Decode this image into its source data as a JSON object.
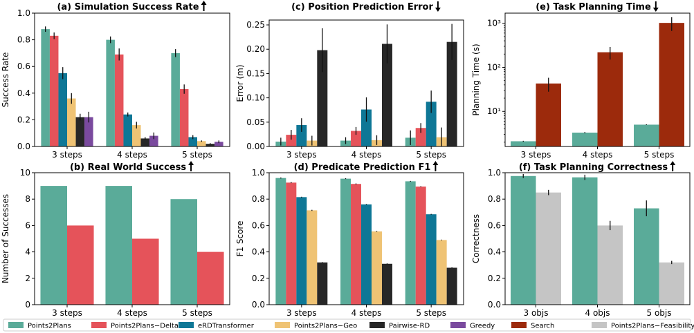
{
  "colors": {
    "Points2Plans": "#5aab99",
    "Points2Plans-Delta": "#e5535a",
    "eRDTransformer": "#0e7796",
    "Points2Plans-Geo": "#efc374",
    "Pairwise-RD": "#272727",
    "Greedy": "#7a4a9e",
    "Search": "#9c2a0c",
    "Points2Plans-Feasibility": "#c5c5c5"
  },
  "legend": {
    "entries": [
      {
        "key": "Points2Plans",
        "label": "Points2Plans"
      },
      {
        "key": "Points2Plans-Delta",
        "label": "Points2Plans−Delta"
      },
      {
        "key": "eRDTransformer",
        "label": "eRDTransformer"
      },
      {
        "key": "Points2Plans-Geo",
        "label": "Points2Plans−Geo"
      },
      {
        "key": "Pairwise-RD",
        "label": "Pairwise-RD"
      },
      {
        "key": "Greedy",
        "label": "Greedy"
      },
      {
        "key": "Search",
        "label": "Search"
      },
      {
        "key": "Points2Plans-Feasibility",
        "label": "Points2Plans−Feasibility"
      }
    ]
  },
  "chart_data": [
    {
      "id": "a",
      "type": "bar",
      "title": "(a) Simulation Success Rate",
      "arrow": "up",
      "xlabel": "",
      "ylabel": "Success Rate",
      "categories": [
        "3 steps",
        "4 steps",
        "5 steps"
      ],
      "ylim": [
        0,
        1.0
      ],
      "yticks": [
        0,
        0.2,
        0.4,
        0.6,
        0.8,
        1.0
      ],
      "ytick_labels": [
        "0.0",
        "0.2",
        "0.4",
        "0.6",
        "0.8",
        "1.0"
      ],
      "series": [
        {
          "key": "Points2Plans",
          "values": [
            0.88,
            0.8,
            0.7
          ],
          "err": [
            0.02,
            0.025,
            0.03
          ]
        },
        {
          "key": "Points2Plans-Delta",
          "values": [
            0.83,
            0.69,
            0.43
          ],
          "err": [
            0.025,
            0.045,
            0.035
          ]
        },
        {
          "key": "eRDTransformer",
          "values": [
            0.55,
            0.24,
            0.07
          ],
          "err": [
            0.045,
            0.015,
            0.015
          ]
        },
        {
          "key": "Points2Plans-Geo",
          "values": [
            0.36,
            0.16,
            0.04
          ],
          "err": [
            0.04,
            0.025,
            0.005
          ]
        },
        {
          "key": "Pairwise-RD",
          "values": [
            0.22,
            0.06,
            0.02
          ],
          "err": [
            0.025,
            0.01,
            0.005
          ]
        },
        {
          "key": "Greedy",
          "values": [
            0.22,
            0.08,
            0.035
          ],
          "err": [
            0.04,
            0.025,
            0.01
          ]
        }
      ]
    },
    {
      "id": "c",
      "type": "bar",
      "title": "(c) Position Prediction Error",
      "arrow": "down",
      "xlabel": "",
      "ylabel": "Error (m)",
      "categories": [
        "3 steps",
        "4 steps",
        "5 steps"
      ],
      "ylim": [
        0,
        0.26
      ],
      "yticks": [
        0,
        0.05,
        0.1,
        0.15,
        0.2,
        0.25
      ],
      "ytick_labels": [
        "0.00",
        "0.05",
        "0.10",
        "0.15",
        "0.20",
        "0.25"
      ],
      "series": [
        {
          "key": "Points2Plans",
          "values": [
            0.01,
            0.012,
            0.018
          ],
          "err": [
            0.008,
            0.007,
            0.015
          ]
        },
        {
          "key": "Points2Plans-Delta",
          "values": [
            0.024,
            0.032,
            0.038
          ],
          "err": [
            0.01,
            0.008,
            0.01
          ]
        },
        {
          "key": "eRDTransformer",
          "values": [
            0.044,
            0.076,
            0.092
          ],
          "err": [
            0.014,
            0.025,
            0.023
          ]
        },
        {
          "key": "Points2Plans-Geo",
          "values": [
            0.012,
            0.013,
            0.019
          ],
          "err": [
            0.01,
            0.01,
            0.02
          ]
        },
        {
          "key": "Pairwise-RD",
          "values": [
            0.198,
            0.211,
            0.215
          ],
          "err": [
            0.045,
            0.04,
            0.037
          ]
        }
      ]
    },
    {
      "id": "e",
      "type": "bar",
      "title": "(e) Task Planning Time",
      "arrow": "down",
      "xlabel": "",
      "ylabel": "Planning Time (s)",
      "yscale": "log",
      "categories": [
        "3 steps",
        "4 steps",
        "5 steps"
      ],
      "ylim": [
        1.6,
        1700
      ],
      "yticks": [
        10,
        100,
        1000
      ],
      "ytick_labels": [
        "10¹",
        "10²",
        "10³"
      ],
      "series": [
        {
          "key": "Points2Plans",
          "values": [
            2.1,
            3.3,
            5.0
          ],
          "err": [
            0.05,
            0.1,
            0.1
          ]
        },
        {
          "key": "Search",
          "values": [
            43,
            220,
            1020
          ],
          "err": [
            15,
            70,
            350
          ]
        }
      ]
    },
    {
      "id": "b",
      "type": "bar",
      "title": "(b) Real World Success",
      "arrow": "up",
      "xlabel": "",
      "ylabel": "Number of Successes",
      "categories": [
        "3 steps",
        "4 steps",
        "5 steps"
      ],
      "ylim": [
        0,
        10
      ],
      "yticks": [
        0,
        2,
        4,
        6,
        8,
        10
      ],
      "ytick_labels": [
        "0",
        "2",
        "4",
        "6",
        "8",
        "10"
      ],
      "series": [
        {
          "key": "Points2Plans",
          "values": [
            9,
            9,
            8
          ]
        },
        {
          "key": "Points2Plans-Delta",
          "values": [
            6,
            5,
            4
          ]
        }
      ]
    },
    {
      "id": "d",
      "type": "bar",
      "title": "(d) Predicate Prediction F1",
      "arrow": "up",
      "xlabel": "",
      "ylabel": "F1 Score",
      "categories": [
        "3 steps",
        "4 steps",
        "5 steps"
      ],
      "ylim": [
        0,
        1.0
      ],
      "yticks": [
        0,
        0.2,
        0.4,
        0.6,
        0.8,
        1.0
      ],
      "ytick_labels": [
        "0.0",
        "0.2",
        "0.4",
        "0.6",
        "0.8",
        "1.0"
      ],
      "series": [
        {
          "key": "Points2Plans",
          "values": [
            0.96,
            0.955,
            0.935
          ],
          "err": [
            0.004,
            0.003,
            0.003
          ]
        },
        {
          "key": "Points2Plans-Delta",
          "values": [
            0.925,
            0.915,
            0.895
          ],
          "err": [
            0.004,
            0.004,
            0.003
          ]
        },
        {
          "key": "eRDTransformer",
          "values": [
            0.815,
            0.76,
            0.685
          ],
          "err": [
            0.003,
            0.003,
            0.003
          ]
        },
        {
          "key": "Points2Plans-Geo",
          "values": [
            0.715,
            0.555,
            0.49
          ],
          "err": [
            0.004,
            0.003,
            0.003
          ]
        },
        {
          "key": "Pairwise-RD",
          "values": [
            0.32,
            0.31,
            0.28
          ],
          "err": [
            0.003,
            0.003,
            0.003
          ]
        }
      ]
    },
    {
      "id": "f",
      "type": "bar",
      "title": "(f) Task Planning Correctness",
      "arrow": "up",
      "xlabel": "",
      "ylabel": "Correctness",
      "categories": [
        "3 objs",
        "4 objs",
        "5 objs"
      ],
      "ylim": [
        0,
        1.0
      ],
      "yticks": [
        0,
        0.2,
        0.4,
        0.6,
        0.8,
        1.0
      ],
      "ytick_labels": [
        "0.0",
        "0.2",
        "0.4",
        "0.6",
        "0.8",
        "1.0"
      ],
      "series": [
        {
          "key": "Points2Plans",
          "values": [
            0.975,
            0.965,
            0.73
          ],
          "err": [
            0.015,
            0.02,
            0.06
          ]
        },
        {
          "key": "Points2Plans-Feasibility",
          "values": [
            0.85,
            0.6,
            0.32
          ],
          "err": [
            0.02,
            0.035,
            0.012
          ]
        }
      ]
    }
  ]
}
